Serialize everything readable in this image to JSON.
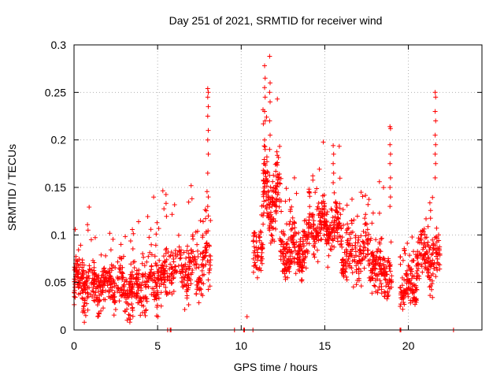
{
  "chart_data": {
    "type": "scatter",
    "title": "Day 251 of 2021, SRMTID for receiver wind",
    "xlabel": "GPS time / hours",
    "ylabel": "SRMTID / TECUs",
    "xlim": [
      0,
      24.4
    ],
    "ylim": [
      0,
      0.3
    ],
    "xticks": [
      0,
      5,
      10,
      15,
      20
    ],
    "xtick_labels": [
      "0",
      "5",
      "10",
      "15",
      "20"
    ],
    "yticks": [
      0,
      0.05,
      0.1,
      0.15,
      0.2,
      0.25,
      0.3
    ],
    "ytick_labels": [
      "0",
      "0.05",
      "0.1",
      "0.15",
      "0.2",
      "0.25",
      "0.3"
    ],
    "grid": true,
    "marker": "+",
    "color": "#ff0000",
    "series": [
      {
        "name": "SRMTID",
        "segments": [
          {
            "t0": 0.0,
            "t1": 1.5,
            "base": 0.05,
            "spread": 0.028,
            "count": 180
          },
          {
            "t0": 1.5,
            "t1": 3.0,
            "base": 0.048,
            "spread": 0.025,
            "count": 150
          },
          {
            "t0": 3.0,
            "t1": 4.5,
            "base": 0.045,
            "spread": 0.03,
            "count": 160
          },
          {
            "t0": 4.5,
            "t1": 5.5,
            "base": 0.055,
            "spread": 0.03,
            "count": 110
          },
          {
            "t0": 5.5,
            "t1": 8.2,
            "base": 0.065,
            "spread": 0.03,
            "count": 230
          },
          {
            "t0": 10.7,
            "t1": 11.3,
            "base": 0.085,
            "spread": 0.03,
            "count": 60
          },
          {
            "t0": 11.3,
            "t1": 12.3,
            "base": 0.14,
            "spread": 0.04,
            "count": 150
          },
          {
            "t0": 12.3,
            "t1": 14.0,
            "base": 0.085,
            "spread": 0.03,
            "count": 200
          },
          {
            "t0": 14.0,
            "t1": 16.0,
            "base": 0.11,
            "spread": 0.03,
            "count": 230
          },
          {
            "t0": 16.0,
            "t1": 18.0,
            "base": 0.08,
            "spread": 0.03,
            "count": 200
          },
          {
            "t0": 18.0,
            "t1": 19.0,
            "base": 0.06,
            "spread": 0.03,
            "count": 110
          },
          {
            "t0": 19.5,
            "t1": 20.5,
            "base": 0.045,
            "spread": 0.02,
            "count": 110
          },
          {
            "t0": 20.5,
            "t1": 21.9,
            "base": 0.075,
            "spread": 0.03,
            "count": 150
          }
        ],
        "spikes": [
          {
            "x": 8.0,
            "ys": [
              0.254,
              0.25,
              0.245,
              0.235,
              0.225,
              0.21,
              0.2,
              0.185,
              0.165,
              0.14,
              0.13,
              0.12
            ]
          },
          {
            "x": 11.4,
            "ys": [
              0.278,
              0.265,
              0.255,
              0.245,
              0.23,
              0.22,
              0.2,
              0.19,
              0.175
            ]
          },
          {
            "x": 11.7,
            "ys": [
              0.288,
              0.26,
              0.25,
              0.24,
              0.22,
              0.205,
              0.19
            ]
          },
          {
            "x": 15.5,
            "ys": [
              0.194,
              0.185,
              0.175,
              0.165,
              0.155
            ]
          },
          {
            "x": 18.9,
            "ys": [
              0.214,
              0.212,
              0.195,
              0.185,
              0.175,
              0.16,
              0.15,
              0.14,
              0.13
            ]
          },
          {
            "x": 21.6,
            "ys": [
              0.25,
              0.245,
              0.23,
              0.22,
              0.205,
              0.195,
              0.185,
              0.175,
              0.16
            ]
          }
        ],
        "zero_points": [
          5.6,
          5.75,
          5.8,
          9.6,
          10.15,
          10.2,
          10.7,
          19.5,
          19.55,
          22.7
        ],
        "isolated": [
          {
            "x": 10.35,
            "y": 0.014
          }
        ]
      }
    ]
  }
}
